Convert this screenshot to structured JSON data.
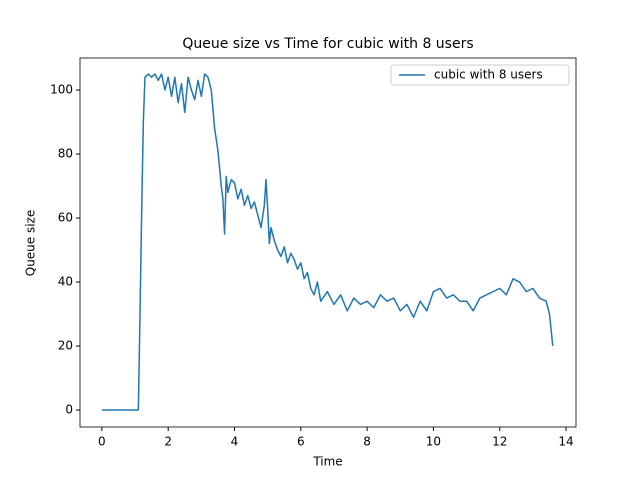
{
  "chart_data": {
    "type": "line",
    "title": "Queue size vs Time for cubic with 8 users",
    "x_label": "Time",
    "y_label": "Queue size",
    "x": [
      0,
      0.5,
      1.0,
      1.1,
      1.15,
      1.2,
      1.25,
      1.3,
      1.4,
      1.5,
      1.6,
      1.7,
      1.8,
      1.9,
      2.0,
      2.1,
      2.2,
      2.3,
      2.4,
      2.5,
      2.6,
      2.7,
      2.8,
      2.9,
      3.0,
      3.1,
      3.2,
      3.3,
      3.4,
      3.5,
      3.6,
      3.65,
      3.7,
      3.75,
      3.8,
      3.9,
      4.0,
      4.1,
      4.2,
      4.3,
      4.4,
      4.5,
      4.6,
      4.7,
      4.8,
      4.9,
      4.95,
      5.0,
      5.05,
      5.1,
      5.2,
      5.3,
      5.4,
      5.5,
      5.6,
      5.7,
      5.8,
      5.9,
      6.0,
      6.1,
      6.2,
      6.3,
      6.4,
      6.5,
      6.6,
      6.8,
      7.0,
      7.2,
      7.4,
      7.6,
      7.8,
      8.0,
      8.2,
      8.4,
      8.6,
      8.8,
      9.0,
      9.2,
      9.4,
      9.6,
      9.8,
      10.0,
      10.2,
      10.4,
      10.6,
      10.8,
      11.0,
      11.2,
      11.4,
      11.6,
      11.8,
      12.0,
      12.2,
      12.4,
      12.6,
      12.8,
      13.0,
      13.2,
      13.4,
      13.5,
      13.6
    ],
    "series": [
      {
        "name": "cubic with 8 users",
        "color": "#1f77b4",
        "values": [
          0,
          0,
          0,
          0,
          30,
          62,
          90,
          104,
          105,
          104,
          105,
          103,
          105,
          100,
          104,
          98,
          104,
          96,
          102,
          93,
          104,
          100,
          97,
          103,
          98,
          105,
          104,
          100,
          88,
          81,
          70,
          66,
          55,
          73,
          68,
          72,
          71,
          66,
          69,
          64,
          67,
          63,
          65,
          61,
          57,
          64,
          72,
          63,
          52,
          57,
          53,
          50,
          48,
          51,
          46,
          49,
          47,
          44,
          46,
          41,
          43,
          38,
          36,
          40,
          34,
          37,
          33,
          36,
          31,
          35,
          33,
          34,
          32,
          36,
          34,
          35,
          31,
          33,
          29,
          34,
          31,
          37,
          38,
          35,
          36,
          34,
          34,
          31,
          35,
          36,
          37,
          38,
          36,
          41,
          40,
          37,
          38,
          35,
          34,
          30,
          20
        ]
      }
    ],
    "xlim": [
      -0.66,
      14.3
    ],
    "ylim": [
      -5.3,
      110
    ],
    "xticks": [
      0,
      2,
      4,
      6,
      8,
      10,
      12,
      14
    ],
    "yticks": [
      0,
      20,
      40,
      60,
      80,
      100
    ],
    "legend": "upper right"
  }
}
